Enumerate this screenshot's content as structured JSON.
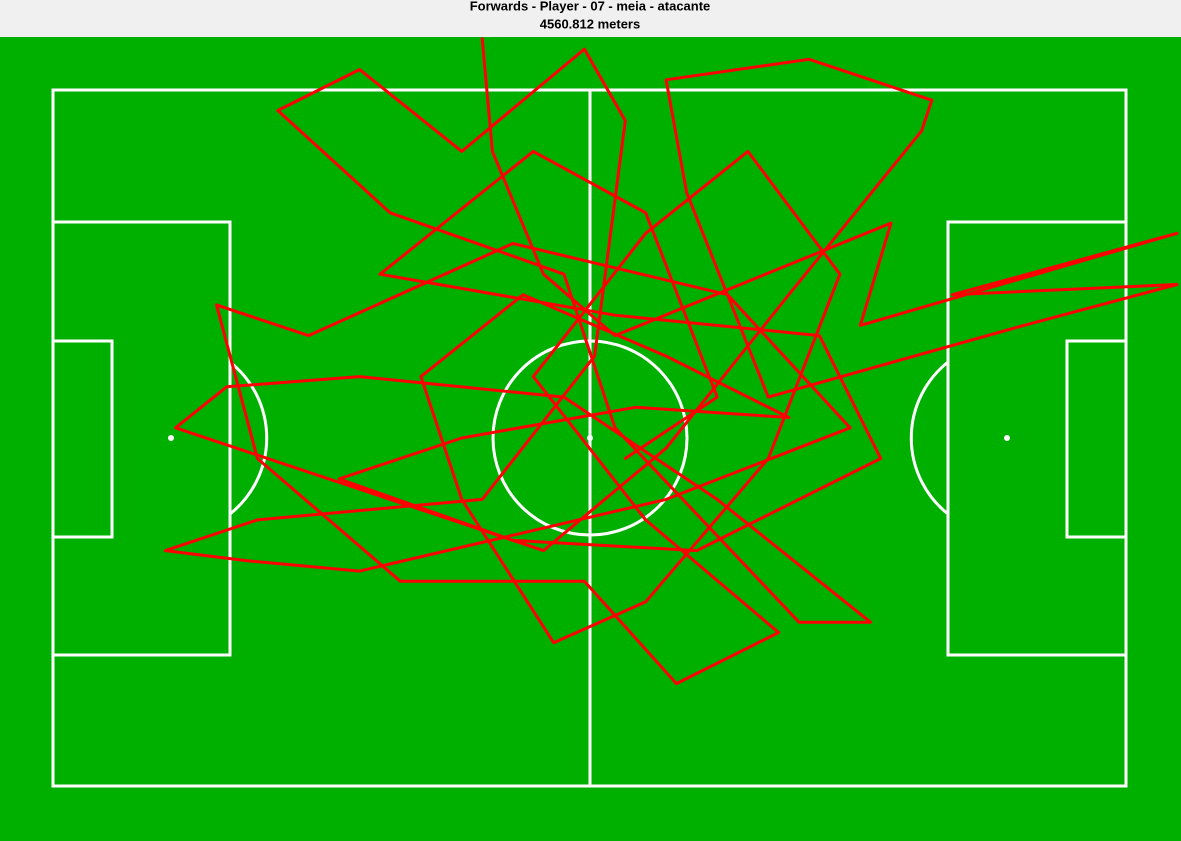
{
  "chart_data": {
    "type": "line",
    "title": "Forwards - Player - 07 - meia - atacante",
    "subtitle": "4560.812 meters",
    "color": "#ff0000",
    "xlim": [
      0,
      105
    ],
    "ylim": [
      0,
      68
    ],
    "x": [
      42,
      43,
      48,
      55,
      82,
      79,
      110,
      88,
      110,
      95,
      70,
      62,
      60,
      74,
      86,
      85,
      72,
      60,
      48,
      12,
      17,
      30,
      50,
      65,
      80,
      73,
      55,
      50,
      33,
      22,
      30,
      40,
      52,
      56,
      53,
      42,
      20,
      11,
      19,
      30,
      60,
      78,
      66,
      45,
      25,
      16,
      20,
      34,
      52,
      61,
      71,
      58,
      47,
      58,
      68,
      77,
      70,
      58,
      49,
      40,
      36,
      46,
      60,
      72,
      57,
      40,
      28,
      45,
      63,
      81,
      75,
      55,
      32,
      47,
      58,
      65,
      56
    ],
    "values": [
      -5,
      6,
      18,
      24,
      13,
      23,
      14,
      20,
      19,
      23,
      30,
      10,
      -1,
      -3,
      1,
      4,
      20,
      35,
      45,
      33,
      29,
      28,
      30,
      40,
      52,
      52,
      33,
      18,
      12,
      2,
      -2,
      6,
      -4,
      3,
      26,
      40,
      42,
      45,
      46,
      47,
      40,
      33,
      20,
      15,
      24,
      21,
      36,
      48,
      48,
      58,
      53,
      42,
      28,
      14,
      6,
      18,
      36,
      50,
      54,
      40,
      28,
      20,
      26,
      32,
      31,
      34,
      38,
      44,
      45,
      36,
      24,
      22,
      18,
      6,
      12,
      30,
      36
    ]
  }
}
